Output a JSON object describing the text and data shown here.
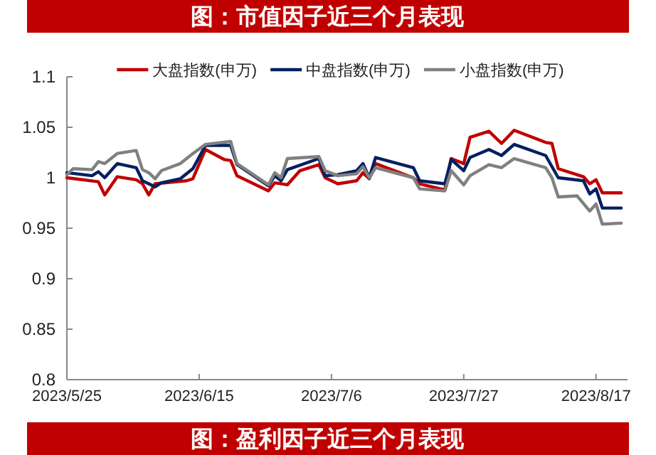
{
  "chart_data": {
    "type": "line",
    "title": "图：市值因子近三个月表现",
    "annotations": [
      "图：盈利因子近三个月表现"
    ],
    "xlim": [
      "2023-05-25",
      "2023-08-22"
    ],
    "xticks": [
      {
        "value": "2023-05-25",
        "label": "2023/5/25"
      },
      {
        "value": "2023-06-15",
        "label": "2023/6/15"
      },
      {
        "value": "2023-07-06",
        "label": "2023/7/6"
      },
      {
        "value": "2023-07-27",
        "label": "2023/7/27"
      },
      {
        "value": "2023-08-17",
        "label": "2023/8/17"
      }
    ],
    "ylim": [
      0.8,
      1.1
    ],
    "yticks": [
      0.8,
      0.85,
      0.9,
      0.95,
      1,
      1.05,
      1.1
    ],
    "grid": false,
    "legend": "top",
    "line_style": "solid",
    "marker": "none",
    "series": [
      {
        "name": "大盘指数(申万)",
        "color": "#c00000",
        "x": [
          "2023-05-25",
          "2023-05-30",
          "2023-05-31",
          "2023-06-02",
          "2023-06-05",
          "2023-06-06",
          "2023-06-07",
          "2023-06-08",
          "2023-06-13",
          "2023-06-14",
          "2023-06-16",
          "2023-06-19",
          "2023-06-20",
          "2023-06-21",
          "2023-06-26",
          "2023-06-27",
          "2023-06-29",
          "2023-07-01",
          "2023-07-04",
          "2023-07-05",
          "2023-07-07",
          "2023-07-10",
          "2023-07-11",
          "2023-07-12",
          "2023-07-13",
          "2023-07-16",
          "2023-07-19",
          "2023-07-20",
          "2023-07-24",
          "2023-07-25",
          "2023-07-27",
          "2023-07-28",
          "2023-07-31",
          "2023-08-02",
          "2023-08-04",
          "2023-08-09",
          "2023-08-10",
          "2023-08-11",
          "2023-08-15",
          "2023-08-16",
          "2023-08-17",
          "2023-08-18",
          "2023-08-21"
        ],
        "values": [
          1.0,
          0.996,
          0.983,
          1.001,
          0.998,
          0.994,
          0.983,
          0.994,
          0.997,
          0.999,
          1.028,
          1.018,
          1.017,
          1.002,
          0.987,
          0.995,
          0.993,
          1.007,
          1.013,
          1.0,
          0.994,
          0.997,
          1.005,
          0.999,
          1.014,
          1.007,
          1.0,
          0.994,
          0.988,
          1.019,
          1.014,
          1.04,
          1.046,
          1.034,
          1.047,
          1.035,
          1.034,
          1.009,
          1.001,
          0.994,
          0.998,
          0.985,
          0.985
        ]
      },
      {
        "name": "中盘指数(申万)",
        "color": "#002060",
        "x": [
          "2023-05-25",
          "2023-05-29",
          "2023-05-30",
          "2023-05-31",
          "2023-06-02",
          "2023-06-05",
          "2023-06-06",
          "2023-06-08",
          "2023-06-09",
          "2023-06-12",
          "2023-06-14",
          "2023-06-16",
          "2023-06-20",
          "2023-06-21",
          "2023-06-26",
          "2023-06-27",
          "2023-06-28",
          "2023-06-29",
          "2023-07-04",
          "2023-07-05",
          "2023-07-07",
          "2023-07-10",
          "2023-07-11",
          "2023-07-12",
          "2023-07-13",
          "2023-07-19",
          "2023-07-20",
          "2023-07-24",
          "2023-07-25",
          "2023-07-27",
          "2023-07-28",
          "2023-07-31",
          "2023-08-02",
          "2023-08-04",
          "2023-08-09",
          "2023-08-11",
          "2023-08-15",
          "2023-08-16",
          "2023-08-17",
          "2023-08-18",
          "2023-08-21"
        ],
        "values": [
          1.005,
          1.002,
          1.006,
          1.0,
          1.014,
          1.01,
          0.997,
          0.991,
          0.995,
          0.999,
          1.009,
          1.032,
          1.032,
          1.013,
          0.992,
          1.002,
          0.997,
          1.008,
          1.019,
          1.002,
          1.003,
          1.007,
          1.014,
          1.0,
          1.02,
          1.01,
          0.997,
          0.994,
          1.018,
          1.007,
          1.02,
          1.028,
          1.022,
          1.033,
          1.022,
          1.0,
          0.997,
          0.984,
          0.989,
          0.97,
          0.97
        ]
      },
      {
        "name": "小盘指数(申万)",
        "color": "#808080",
        "x": [
          "2023-05-25",
          "2023-05-26",
          "2023-05-29",
          "2023-05-30",
          "2023-05-31",
          "2023-06-02",
          "2023-06-05",
          "2023-06-06",
          "2023-06-07",
          "2023-06-08",
          "2023-06-09",
          "2023-06-12",
          "2023-06-14",
          "2023-06-16",
          "2023-06-20",
          "2023-06-21",
          "2023-06-26",
          "2023-06-27",
          "2023-06-28",
          "2023-06-29",
          "2023-07-04",
          "2023-07-05",
          "2023-07-07",
          "2023-07-10",
          "2023-07-11",
          "2023-07-12",
          "2023-07-13",
          "2023-07-19",
          "2023-07-20",
          "2023-07-24",
          "2023-07-25",
          "2023-07-27",
          "2023-07-28",
          "2023-07-31",
          "2023-08-02",
          "2023-08-04",
          "2023-08-09",
          "2023-08-10",
          "2023-08-11",
          "2023-08-14",
          "2023-08-16",
          "2023-08-17",
          "2023-08-18",
          "2023-08-21"
        ],
        "values": [
          1.003,
          1.009,
          1.008,
          1.016,
          1.014,
          1.024,
          1.027,
          1.008,
          1.005,
          0.999,
          1.007,
          1.014,
          1.024,
          1.033,
          1.036,
          1.014,
          0.993,
          1.005,
          1.0,
          1.019,
          1.021,
          1.007,
          1.002,
          1.004,
          1.011,
          1.0,
          1.01,
          1.0,
          0.989,
          0.987,
          1.007,
          0.993,
          1.002,
          1.013,
          1.01,
          1.019,
          1.01,
          1.0,
          0.981,
          0.982,
          0.967,
          0.974,
          0.954,
          0.955
        ]
      }
    ]
  }
}
